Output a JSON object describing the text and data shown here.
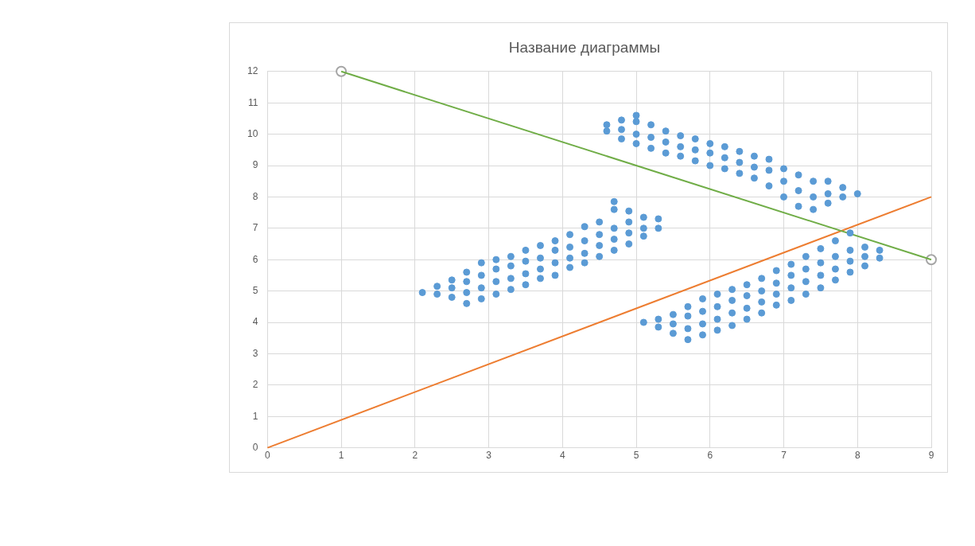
{
  "chart_data": {
    "type": "scatter",
    "title": "Название диаграммы",
    "xlim": [
      0,
      9
    ],
    "xticks": [
      0,
      1,
      2,
      3,
      4,
      5,
      6,
      7,
      8,
      9
    ],
    "ylim": [
      0,
      12
    ],
    "yticks": [
      0,
      1,
      2,
      3,
      4,
      5,
      6,
      7,
      8,
      9,
      10,
      11,
      12
    ],
    "grid": true,
    "legend": false,
    "series": [
      {
        "type": "scatter",
        "color": "#5b9bd5",
        "marker": "circle",
        "x": [
          4.6,
          4.6,
          4.8,
          4.8,
          4.8,
          5.0,
          5.0,
          5.0,
          5.0,
          5.2,
          5.2,
          5.2,
          5.4,
          5.4,
          5.4,
          5.6,
          5.6,
          5.6,
          5.8,
          5.8,
          5.8,
          6.0,
          6.0,
          6.0,
          6.2,
          6.2,
          6.2,
          6.4,
          6.4,
          6.4,
          6.6,
          6.6,
          6.6,
          6.8,
          6.8,
          6.8,
          7.0,
          7.0,
          7.0,
          7.2,
          7.2,
          7.2,
          7.4,
          7.4,
          7.4,
          7.6,
          7.6,
          7.6,
          7.8,
          7.8,
          8.0,
          2.1,
          2.3,
          2.3,
          2.5,
          2.5,
          2.5,
          2.7,
          2.7,
          2.7,
          2.7,
          2.9,
          2.9,
          2.9,
          2.9,
          3.1,
          3.1,
          3.1,
          3.1,
          3.3,
          3.3,
          3.3,
          3.3,
          3.5,
          3.5,
          3.5,
          3.5,
          3.7,
          3.7,
          3.7,
          3.7,
          3.9,
          3.9,
          3.9,
          3.9,
          4.1,
          4.1,
          4.1,
          4.1,
          4.3,
          4.3,
          4.3,
          4.3,
          4.5,
          4.5,
          4.5,
          4.5,
          4.7,
          4.7,
          4.7,
          4.7,
          4.7,
          4.9,
          4.9,
          4.9,
          4.9,
          5.1,
          5.1,
          5.1,
          5.3,
          5.3,
          5.1,
          5.3,
          5.3,
          5.5,
          5.5,
          5.5,
          5.7,
          5.7,
          5.7,
          5.7,
          5.9,
          5.9,
          5.9,
          5.9,
          6.1,
          6.1,
          6.1,
          6.1,
          6.3,
          6.3,
          6.3,
          6.3,
          6.5,
          6.5,
          6.5,
          6.5,
          6.7,
          6.7,
          6.7,
          6.7,
          6.9,
          6.9,
          6.9,
          6.9,
          7.1,
          7.1,
          7.1,
          7.1,
          7.3,
          7.3,
          7.3,
          7.3,
          7.5,
          7.5,
          7.5,
          7.5,
          7.7,
          7.7,
          7.7,
          7.7,
          7.9,
          7.9,
          7.9,
          7.9,
          8.1,
          8.1,
          8.1,
          8.3,
          8.3
        ],
        "values": [
          10.1,
          10.3,
          9.85,
          10.15,
          10.45,
          9.7,
          10.0,
          10.4,
          10.6,
          9.55,
          9.9,
          10.3,
          9.4,
          9.75,
          10.1,
          9.3,
          9.6,
          9.95,
          9.15,
          9.5,
          9.85,
          9.0,
          9.4,
          9.7,
          8.9,
          9.25,
          9.6,
          8.75,
          9.1,
          9.45,
          8.6,
          8.95,
          9.3,
          8.35,
          8.85,
          9.2,
          8.0,
          8.5,
          8.9,
          7.7,
          8.2,
          8.7,
          7.6,
          8.0,
          8.5,
          7.8,
          8.1,
          8.5,
          8.0,
          8.3,
          8.1,
          4.95,
          4.9,
          5.15,
          4.8,
          5.1,
          5.35,
          4.6,
          4.95,
          5.3,
          5.6,
          4.75,
          5.1,
          5.5,
          5.9,
          4.9,
          5.3,
          5.7,
          6.0,
          5.05,
          5.4,
          5.8,
          6.1,
          5.2,
          5.55,
          5.95,
          6.3,
          5.4,
          5.7,
          6.05,
          6.45,
          5.5,
          5.9,
          6.3,
          6.6,
          5.75,
          6.05,
          6.4,
          6.8,
          5.9,
          6.2,
          6.6,
          7.05,
          6.1,
          6.45,
          6.8,
          7.2,
          6.3,
          6.65,
          7.0,
          7.6,
          7.85,
          6.5,
          6.85,
          7.2,
          7.55,
          6.75,
          7.0,
          7.35,
          7.0,
          7.3,
          4.0,
          3.85,
          4.1,
          3.65,
          3.95,
          4.25,
          3.45,
          3.8,
          4.2,
          4.5,
          3.6,
          3.95,
          4.35,
          4.75,
          3.75,
          4.1,
          4.5,
          4.9,
          3.9,
          4.3,
          4.7,
          5.05,
          4.1,
          4.45,
          4.85,
          5.2,
          4.3,
          4.65,
          5.0,
          5.4,
          4.55,
          4.9,
          5.25,
          5.65,
          4.7,
          5.1,
          5.5,
          5.85,
          4.9,
          5.3,
          5.7,
          6.1,
          5.1,
          5.5,
          5.9,
          6.35,
          5.35,
          5.7,
          6.1,
          6.6,
          5.6,
          5.95,
          6.3,
          6.85,
          5.8,
          6.1,
          6.4,
          6.05,
          6.3
        ]
      },
      {
        "type": "line",
        "color": "#70ad47",
        "marker": "none",
        "x": [
          1,
          9
        ],
        "values": [
          12,
          6
        ]
      },
      {
        "type": "line",
        "color": "#ed7d31",
        "marker": "none",
        "x": [
          0,
          9
        ],
        "values": [
          0,
          8
        ]
      },
      {
        "type": "scatter",
        "color": "#a5a5a5",
        "marker": "circle",
        "x": [
          1,
          9
        ],
        "values": [
          12,
          6
        ]
      }
    ]
  }
}
